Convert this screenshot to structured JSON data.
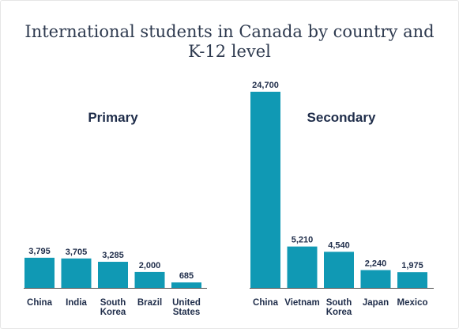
{
  "title": "International students in Canada by country and K-12 level",
  "chart_data": [
    {
      "type": "bar",
      "title": "Primary",
      "categories": [
        "China",
        "India",
        "South Korea",
        "Brazil",
        "United States"
      ],
      "values": [
        3795,
        3705,
        3285,
        2000,
        685
      ],
      "value_labels": [
        "3,795",
        "3,705",
        "3,285",
        "2,000",
        "685"
      ],
      "ylim": [
        0,
        24700
      ],
      "grid": false,
      "color": "#1099b4"
    },
    {
      "type": "bar",
      "title": "Secondary",
      "categories": [
        "China",
        "Vietnam",
        "South Korea",
        "Japan",
        "Mexico"
      ],
      "values": [
        24700,
        5210,
        4540,
        2240,
        1975
      ],
      "value_labels": [
        "24,700",
        "5,210",
        "4,540",
        "2,240",
        "1,975"
      ],
      "ylim": [
        0,
        24700
      ],
      "grid": false,
      "color": "#1099b4"
    }
  ]
}
